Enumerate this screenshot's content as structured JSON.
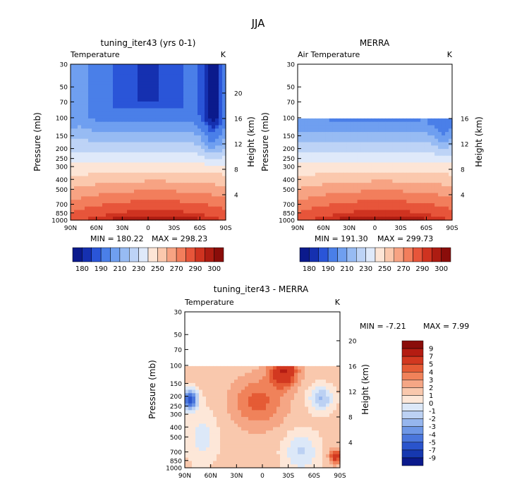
{
  "figure_title": "JJA",
  "chart_data": [
    {
      "type": "heatmap",
      "title": "tuning_iter43 (yrs 0-1)",
      "subtitle": "Temperature",
      "units": "K",
      "xlabel": "",
      "ylabel": "Pressure (mb)",
      "ylabel_right": "Height (km)",
      "x_ticks": [
        "90N",
        "60N",
        "30N",
        "0",
        "30S",
        "60S",
        "90S"
      ],
      "y_ticks": [
        30,
        50,
        70,
        100,
        150,
        200,
        250,
        300,
        400,
        500,
        700,
        850,
        1000
      ],
      "height_ticks": [
        20,
        16,
        12,
        8,
        4
      ],
      "min_label": "MIN = 180.22",
      "max_label": "MAX = 298.23",
      "colorbar_ticks": [
        "180",
        "190",
        "210",
        "230",
        "250",
        "270",
        "290",
        "300"
      ]
    },
    {
      "type": "heatmap",
      "title": "MERRA",
      "subtitle": "Air Temperature",
      "units": "K",
      "xlabel": "",
      "ylabel": "Pressure (mb)",
      "ylabel_right": "Height (km)",
      "x_ticks": [
        "90N",
        "60N",
        "30N",
        "0",
        "30S",
        "60S",
        "90S"
      ],
      "y_ticks": [
        30,
        50,
        70,
        100,
        150,
        200,
        250,
        300,
        400,
        500,
        700,
        850,
        1000
      ],
      "height_ticks": [
        16,
        12,
        8,
        4
      ],
      "data_top_pressure": 100,
      "min_label": "MIN = 191.30",
      "max_label": "MAX = 299.73",
      "colorbar_ticks": [
        "180",
        "190",
        "210",
        "230",
        "250",
        "270",
        "290",
        "300"
      ]
    },
    {
      "type": "heatmap",
      "title": "tuning_iter43 - MERRA",
      "subtitle": "Temperature",
      "units": "K",
      "xlabel": "",
      "ylabel": "Pressure (mb)",
      "ylabel_right": "Height (km)",
      "x_ticks": [
        "90N",
        "60N",
        "30N",
        "0",
        "30S",
        "60S",
        "90S"
      ],
      "y_ticks": [
        30,
        50,
        70,
        100,
        150,
        200,
        250,
        300,
        400,
        500,
        700,
        850,
        1000
      ],
      "height_ticks": [
        20,
        16,
        12,
        8,
        4
      ],
      "data_top_pressure": 100,
      "min_label": "MIN =  -7.21",
      "max_label": "MAX =   7.99",
      "colorbar_ticks": [
        "9",
        "7",
        "5",
        "4",
        "3",
        "2",
        "1",
        "0",
        "-1",
        "-2",
        "-3",
        "-4",
        "-5",
        "-7",
        "-9"
      ]
    }
  ],
  "abs_palette": [
    "#0b1a8c",
    "#1530b0",
    "#2a55d8",
    "#4a7fe8",
    "#6f9ff0",
    "#97bbf3",
    "#bdd3f6",
    "#dfe9fa",
    "#fde5d6",
    "#fbc8ad",
    "#f7a383",
    "#f27e5c",
    "#e7553a",
    "#cf3320",
    "#ad1c12",
    "#8a0d0a"
  ],
  "diff_palette": [
    "#8a0d0a",
    "#b41c12",
    "#d23820",
    "#e55b35",
    "#f0825a",
    "#f5a685",
    "#f9c8ad",
    "#fde7d8",
    "#dce8f8",
    "#bcd1f3",
    "#96b6ee",
    "#6e97e6",
    "#4a76dc",
    "#2a54cc",
    "#1638b0",
    "#0b1a8c"
  ]
}
